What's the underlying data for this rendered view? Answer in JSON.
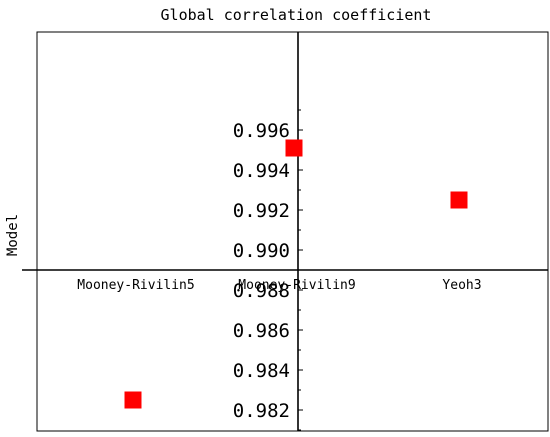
{
  "chart_data": {
    "type": "scatter",
    "title": "Global correlation coefficient",
    "xlabel": "",
    "ylabel": "Model",
    "categories": [
      "Mooney-Rivilin5",
      "Mooney-Rivilin9",
      "Yeoh3"
    ],
    "values": [
      0.9825,
      0.9951,
      0.9925
    ],
    "ylim": [
      0.981,
      0.997
    ],
    "yticks": [
      "0.982",
      "0.984",
      "0.986",
      "0.988",
      "0.990",
      "0.992",
      "0.994",
      "0.996"
    ],
    "x_axis_crosses_y_at": 0.989,
    "marker": "square",
    "marker_color": "#ff0000",
    "grid": false,
    "legend": "none"
  }
}
